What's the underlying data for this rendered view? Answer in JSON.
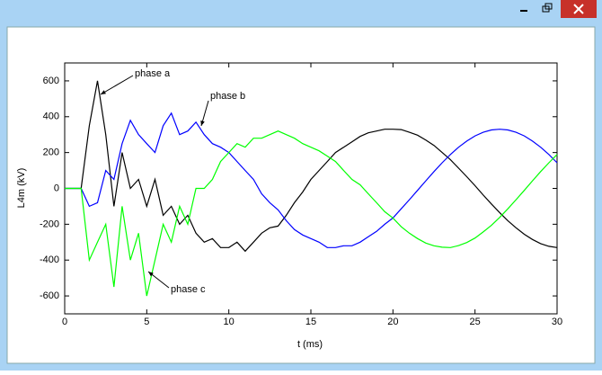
{
  "chart_data": {
    "type": "line",
    "x_label": "t (ms)",
    "y_label": "L4m  (kV)",
    "xlim": [
      0,
      30
    ],
    "xticks": [
      0,
      5,
      10,
      15,
      20,
      25,
      30
    ],
    "ylim": [
      -700,
      700
    ],
    "yticks": [
      -600,
      -400,
      -200,
      0,
      200,
      400,
      600
    ],
    "x": [
      0,
      0.5,
      1,
      1.5,
      2,
      2.5,
      3,
      3.5,
      4,
      4.5,
      5,
      5.5,
      6,
      6.5,
      7,
      7.5,
      8,
      8.5,
      9,
      9.5,
      10,
      10.5,
      11,
      11.5,
      12,
      12.5,
      13,
      13.5,
      14,
      14.5,
      15,
      15.5,
      16,
      16.5,
      17,
      17.5,
      18,
      18.5,
      19,
      19.5,
      20,
      20.5,
      21,
      21.5,
      22,
      22.5,
      23,
      23.5,
      24,
      24.5,
      25,
      25.5,
      26,
      26.5,
      27,
      27.5,
      28,
      28.5,
      29,
      29.5,
      30
    ],
    "series": [
      {
        "name": "phase a",
        "color": "#000000",
        "values": [
          0,
          0,
          0,
          350,
          600,
          300,
          -100,
          200,
          0,
          50,
          -100,
          50,
          -150,
          -100,
          -200,
          -150,
          -250,
          -300,
          -280,
          -330,
          -330,
          -300,
          -350,
          -300,
          -250,
          -220,
          -210,
          -150,
          -80,
          -20,
          50,
          100,
          150,
          200,
          230,
          260,
          290,
          310,
          320,
          330,
          330,
          328,
          313,
          297,
          270,
          240,
          200,
          160,
          113,
          65,
          15,
          -37,
          -87,
          -135,
          -180,
          -220,
          -256,
          -285,
          -308,
          -323,
          -330
        ]
      },
      {
        "name": "phase b",
        "color": "#0000ff",
        "values": [
          0,
          0,
          0,
          -100,
          -80,
          100,
          50,
          250,
          380,
          300,
          250,
          200,
          350,
          420,
          300,
          320,
          370,
          300,
          250,
          230,
          200,
          150,
          100,
          50,
          -30,
          -80,
          -120,
          -180,
          -230,
          -260,
          -280,
          -300,
          -330,
          -330,
          -320,
          -320,
          -300,
          -270,
          -240,
          -200,
          -165,
          -114,
          -63,
          -11,
          42,
          94,
          143,
          189,
          230,
          264,
          293,
          313,
          326,
          330,
          326,
          313,
          293,
          264,
          230,
          189,
          143
        ]
      },
      {
        "name": "phase c",
        "color": "#00ff00",
        "values": [
          0,
          0,
          0,
          -400,
          -300,
          -200,
          -550,
          -100,
          -400,
          -250,
          -600,
          -400,
          -200,
          -300,
          -100,
          -200,
          0,
          0,
          50,
          150,
          200,
          250,
          230,
          280,
          280,
          300,
          320,
          300,
          280,
          250,
          230,
          210,
          180,
          150,
          100,
          50,
          20,
          -30,
          -80,
          -130,
          -165,
          -214,
          -250,
          -280,
          -305,
          -320,
          -328,
          -330,
          -319,
          -302,
          -277,
          -243,
          -206,
          -162,
          -114,
          -63,
          -11,
          42,
          94,
          143,
          189
        ]
      }
    ]
  }
}
